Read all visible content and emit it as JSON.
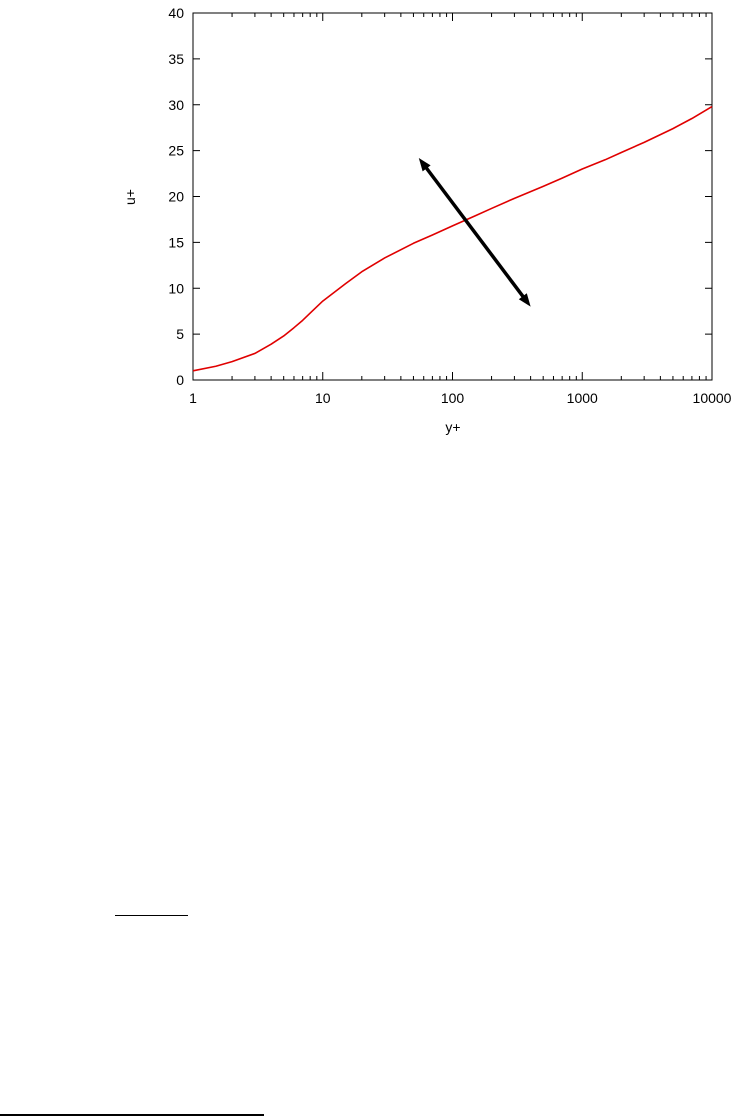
{
  "chart_data": {
    "type": "line",
    "xlabel": "y+",
    "ylabel": "u+",
    "xscale": "log",
    "xlim": [
      1,
      10000
    ],
    "ylim": [
      0,
      40
    ],
    "grid": false,
    "x_ticks": [
      "1",
      "10",
      "100",
      "1000",
      "10000"
    ],
    "y_ticks": [
      "0",
      "5",
      "10",
      "15",
      "20",
      "25",
      "30",
      "35",
      "40"
    ],
    "series": [
      {
        "color": "#e00000",
        "x": [
          1,
          1.5,
          2,
          3,
          4,
          5,
          6,
          7,
          8,
          10,
          15,
          20,
          30,
          50,
          70,
          100,
          150,
          200,
          300,
          500,
          700,
          1000,
          1500,
          2000,
          3000,
          5000,
          7000,
          10000
        ],
        "y": [
          1.0,
          1.5,
          2.0,
          2.9,
          3.9,
          4.8,
          5.7,
          6.5,
          7.3,
          8.6,
          10.5,
          11.8,
          13.3,
          14.9,
          15.8,
          16.8,
          17.9,
          18.7,
          19.8,
          21.1,
          22.0,
          23.0,
          24.0,
          24.8,
          25.9,
          27.4,
          28.5,
          29.8
        ]
      }
    ],
    "annotations": [
      {
        "type": "double-arrow",
        "color": "#000000",
        "from": [
          55,
          24.2
        ],
        "to": [
          400,
          8.0
        ]
      }
    ]
  }
}
